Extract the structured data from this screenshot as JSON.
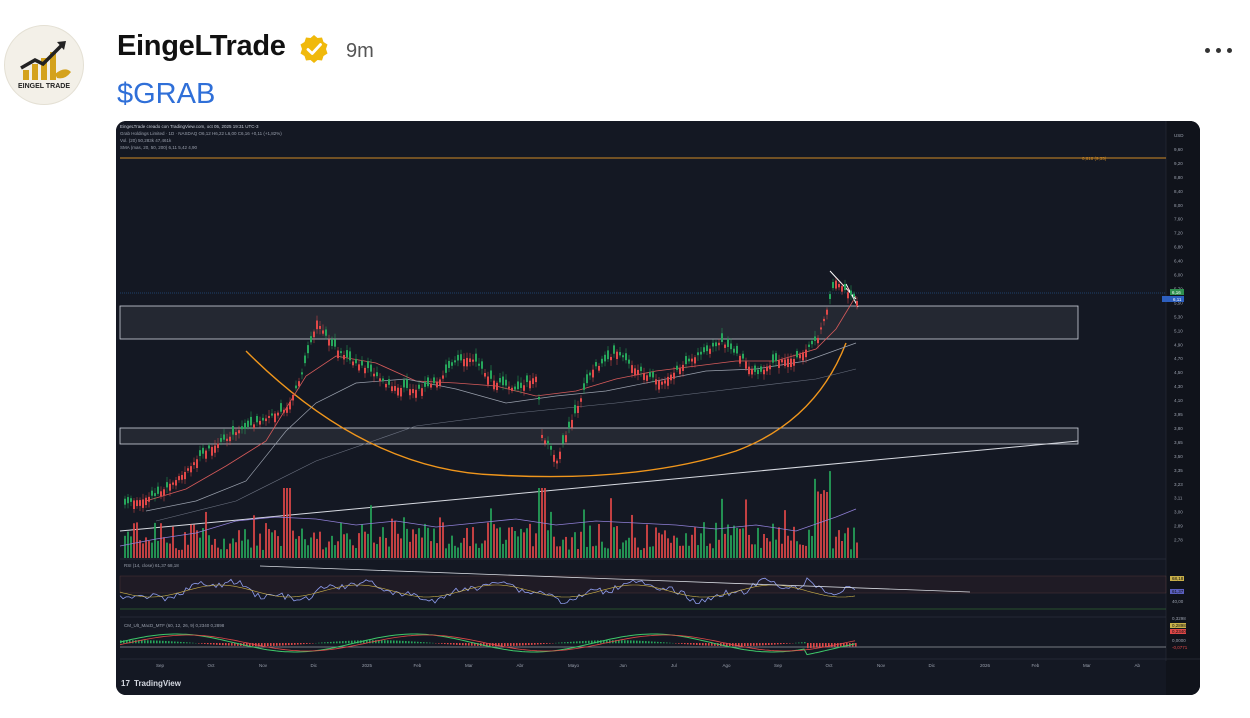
{
  "post": {
    "author": "EingeLTrade",
    "avatar_text": "EINGEL TRADE",
    "time": "9m",
    "ticker": "$GRAB",
    "badge_icon": "verified-check-icon",
    "more_icon": "more-horizontal-icon"
  },
  "chart": {
    "header_line1": "EingeLTrade creado con TradingView.com, oct 05, 2025 19:31 UTC-3",
    "header_line2": "Grab Holdings Limited · 1D · NASDAQ  O6,12  H6,22  L6,00  C6,16  +0,11 (+1,82%)",
    "header_line3": "Vol. (20)  50,283k  47,461k",
    "header_line4": "SMA (mas, 20, 50, 200)  6,11  5,42  4,90",
    "fib_label": "0,618 (9,35)",
    "price_axis": [
      "USD",
      "9,60",
      "9,20",
      "8,80",
      "8,40",
      "8,00",
      "7,60",
      "7,20",
      "6,80",
      "6,40",
      "6,00",
      "5,70",
      "5,50",
      "5,30",
      "5,10",
      "4,90",
      "4,70",
      "4,50",
      "4,30",
      "4,10",
      "3,95",
      "3,80",
      "3,65",
      "3,50",
      "3,35",
      "3,23",
      "3,11",
      "3,00",
      "2,89",
      "2,78"
    ],
    "price_tag": "6,16",
    "pos_tag": "6,11",
    "rsi_label": "RSI (14, close)  61,37  68,18",
    "rsi_axis": [
      "80,00",
      "68,18",
      "61,37",
      "40,00"
    ],
    "macd_label": "CM_Ult_MacD_MTF (60, 12, 26, 9)  0,2340  0,2898",
    "macd_axis": [
      "0,3298",
      "0,2898",
      "0,2340",
      "0,0000",
      "-0,0771"
    ],
    "time_axis": [
      "Sep",
      "Oct",
      "Nov",
      "Dic",
      "2025",
      "Feb",
      "Mar",
      "Abr",
      "Mayo",
      "Jun",
      "Jul",
      "Ago",
      "Sep",
      "Oct",
      "Nov",
      "Dic",
      "2026",
      "Feb",
      "Mar",
      "Ab"
    ],
    "footer": "TradingView"
  }
}
